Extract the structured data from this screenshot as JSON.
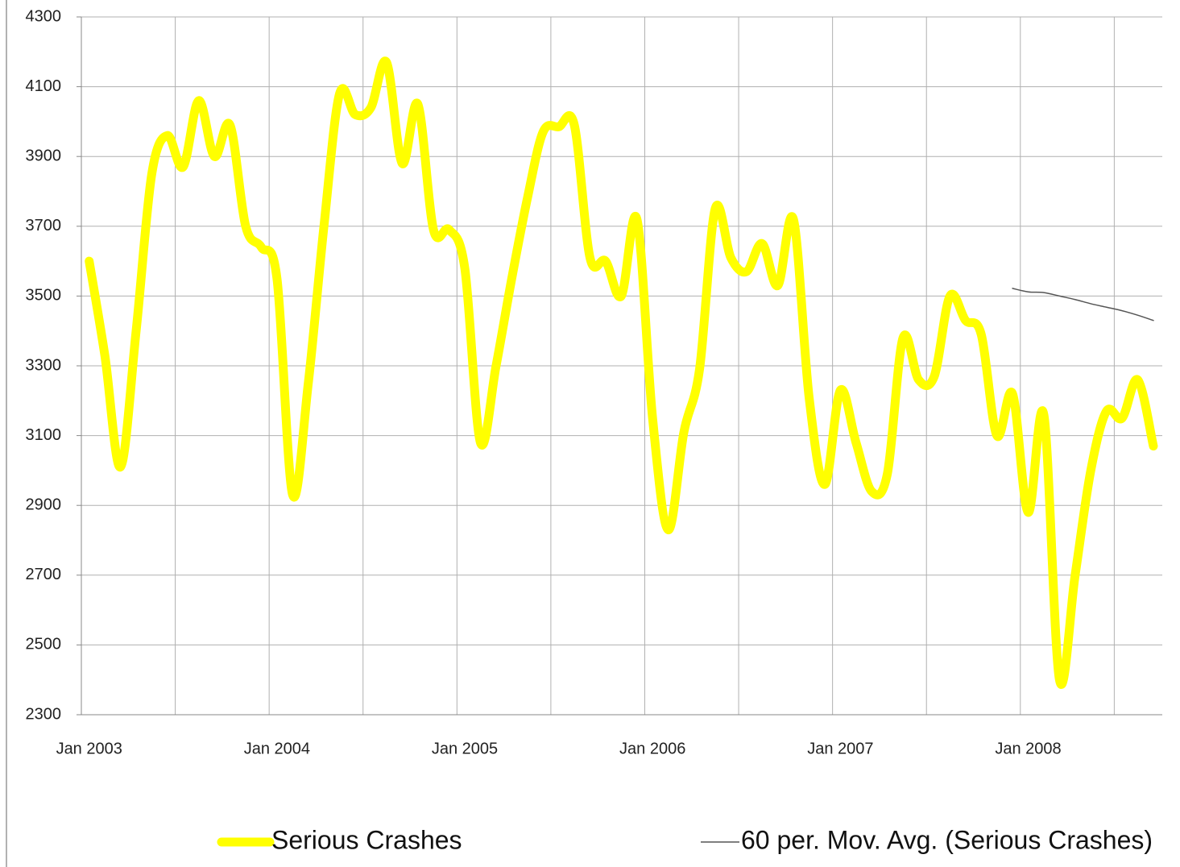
{
  "chart_data": {
    "type": "line",
    "categories": [
      "Jan 2003",
      null,
      null,
      null,
      null,
      null,
      null,
      null,
      null,
      null,
      null,
      null,
      "Jan 2004",
      null,
      null,
      null,
      null,
      null,
      null,
      null,
      null,
      null,
      null,
      null,
      "Jan 2005",
      null,
      null,
      null,
      null,
      null,
      null,
      null,
      null,
      null,
      null,
      null,
      "Jan 2006",
      null,
      null,
      null,
      null,
      null,
      null,
      null,
      null,
      null,
      null,
      null,
      "Jan 2007",
      null,
      null,
      null,
      null,
      null,
      null,
      null,
      null,
      null,
      null,
      null,
      "Jan 2008",
      null,
      null,
      null,
      null,
      null,
      null,
      null,
      null
    ],
    "series": [
      {
        "name": "Serious Crashes",
        "color": "#ffff00",
        "values": [
          3600,
          3330,
          3010,
          3400,
          3850,
          3960,
          3870,
          4060,
          3900,
          3990,
          3700,
          3640,
          3550,
          2930,
          3250,
          3700,
          4080,
          4020,
          4040,
          4170,
          3880,
          4050,
          3690,
          3690,
          3580,
          3080,
          3300,
          3550,
          3780,
          3970,
          3985,
          3990,
          3610,
          3600,
          3500,
          3720,
          3150,
          2830,
          3110,
          3290,
          3750,
          3610,
          3570,
          3650,
          3530,
          3720,
          3210,
          2960,
          3230,
          3080,
          2940,
          2990,
          3380,
          3260,
          3270,
          3500,
          3430,
          3390,
          3100,
          3220,
          2880,
          3160,
          2400,
          2700,
          3000,
          3170,
          3150,
          3260,
          3070
        ]
      },
      {
        "name": "60 per. Mov. Avg. (Serious Crashes)",
        "color": "#555555",
        "values": [
          null,
          null,
          null,
          null,
          null,
          null,
          null,
          null,
          null,
          null,
          null,
          null,
          null,
          null,
          null,
          null,
          null,
          null,
          null,
          null,
          null,
          null,
          null,
          null,
          null,
          null,
          null,
          null,
          null,
          null,
          null,
          null,
          null,
          null,
          null,
          null,
          null,
          null,
          null,
          null,
          null,
          null,
          null,
          null,
          null,
          null,
          null,
          null,
          null,
          null,
          null,
          null,
          null,
          null,
          null,
          null,
          null,
          null,
          null,
          3522,
          3512,
          3510,
          3500,
          3490,
          3478,
          3468,
          3458,
          3445,
          3430
        ]
      }
    ],
    "ylim": [
      2300,
      4300
    ],
    "yticks": [
      2300,
      2500,
      2700,
      2900,
      3100,
      3300,
      3500,
      3700,
      3900,
      4100,
      4300
    ],
    "grid": true,
    "x_grid_every": 6,
    "legend": "bottom"
  }
}
